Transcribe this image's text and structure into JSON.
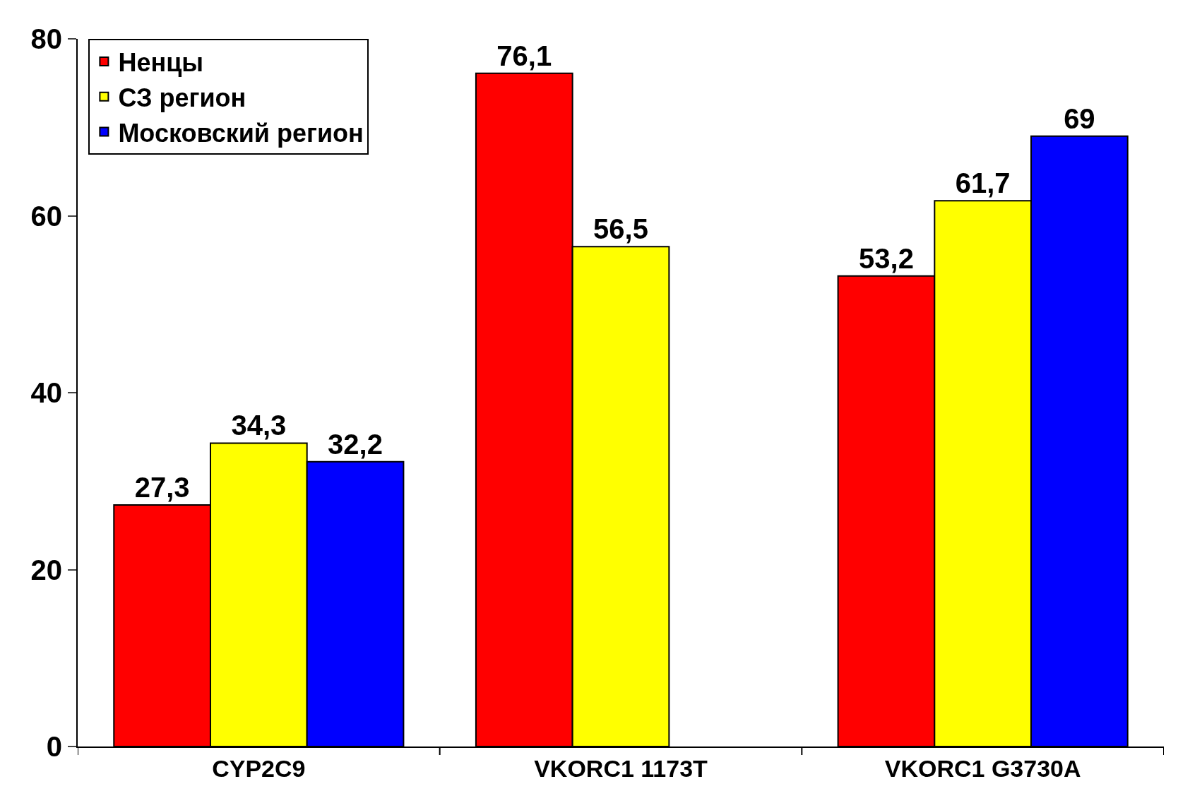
{
  "chart_data": {
    "type": "bar",
    "categories": [
      "CYP2C9",
      "VKORC1 1173T",
      "VKORC1 G3730A"
    ],
    "series": [
      {
        "name": "Ненцы",
        "color": "#ff0000",
        "values": [
          27.3,
          76.1,
          53.2
        ],
        "value_labels": [
          "27,3",
          "76,1",
          "53,2"
        ]
      },
      {
        "name": "СЗ регион",
        "color": "#ffff00",
        "values": [
          34.3,
          56.5,
          61.7
        ],
        "value_labels": [
          "34,3",
          "56,5",
          "61,7"
        ]
      },
      {
        "name": "Московский регион",
        "color": "#0000ff",
        "values": [
          32.2,
          null,
          69
        ],
        "value_labels": [
          "32,2",
          null,
          "69"
        ]
      }
    ],
    "ylim": [
      0,
      80
    ],
    "yticks": [
      0,
      20,
      40,
      60,
      80
    ],
    "grid": false,
    "legend": "top left"
  }
}
